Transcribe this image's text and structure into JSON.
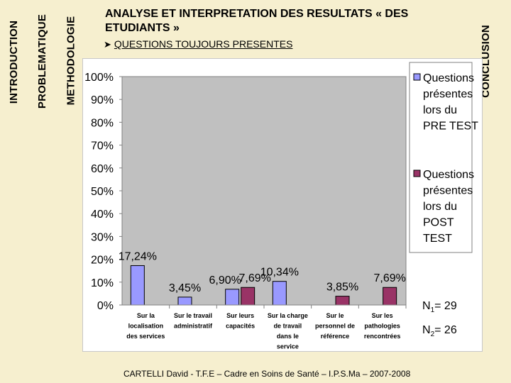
{
  "nav": {
    "introduction": "INTRODUCTION",
    "problematique": "PROBLEMATIQUE",
    "methodologie": "METHODOLOGIE",
    "conclusion": "CONCLUSION"
  },
  "header": {
    "title": "ANALYSE ET INTERPRETATION DES RESULTATS « DES ETUDIANTS »",
    "bullet_icon": "arrow-bullet-icon",
    "subtitle": "QUESTIONS TOUJOURS PRESENTES"
  },
  "sample": {
    "n1_label": "N",
    "n1_sub": "1",
    "n1_value": "= 29",
    "n2_label": "N",
    "n2_sub": "2",
    "n2_value": "= 26"
  },
  "footer": "CARTELLI David - T.F.E – Cadre en Soins de Santé – I.P.S.Ma – 2007-2008",
  "chart_data": {
    "type": "bar",
    "categories": [
      "Sur la localisation des services",
      "Sur le travail administratif",
      "Sur leurs capacités",
      "Sur la charge de travail dans le service",
      "Sur le personnel de référence",
      "Sur les pathologies rencontrées"
    ],
    "category_lines": [
      [
        "Sur la",
        "localisation",
        "des services"
      ],
      [
        "Sur le travail",
        "administratif"
      ],
      [
        "Sur leurs",
        "capacités"
      ],
      [
        "Sur la charge",
        "de travail",
        "dans le",
        "service"
      ],
      [
        "Sur le",
        "personnel de",
        "référence"
      ],
      [
        "Sur les",
        "pathologies",
        "rencontrées"
      ]
    ],
    "series": [
      {
        "name": "Questions présentes lors du PRE TEST",
        "name_lines": [
          "Questions",
          "présentes",
          "lors du",
          "PRE TEST"
        ],
        "color": "#9999ff",
        "values": [
          17.24,
          3.45,
          6.9,
          10.34,
          null,
          null
        ],
        "labels": [
          "17,24%",
          "3,45%",
          "6,90%",
          "10,34%",
          "",
          ""
        ]
      },
      {
        "name": "Questions présentes lors du POST TEST",
        "name_lines": [
          "Questions",
          "présentes",
          "lors du",
          "POST",
          "TEST"
        ],
        "color": "#993366",
        "values": [
          null,
          null,
          7.69,
          null,
          3.85,
          7.69
        ],
        "labels": [
          "",
          "",
          "7,69%",
          "",
          "3,85%",
          "7,69%"
        ]
      }
    ],
    "yticks": [
      "0%",
      "10%",
      "20%",
      "30%",
      "40%",
      "50%",
      "60%",
      "70%",
      "80%",
      "90%",
      "100%"
    ],
    "ylim": [
      0,
      100
    ],
    "plot_area_color": "#c0c0c0",
    "grid": false,
    "legend_position": "right"
  }
}
